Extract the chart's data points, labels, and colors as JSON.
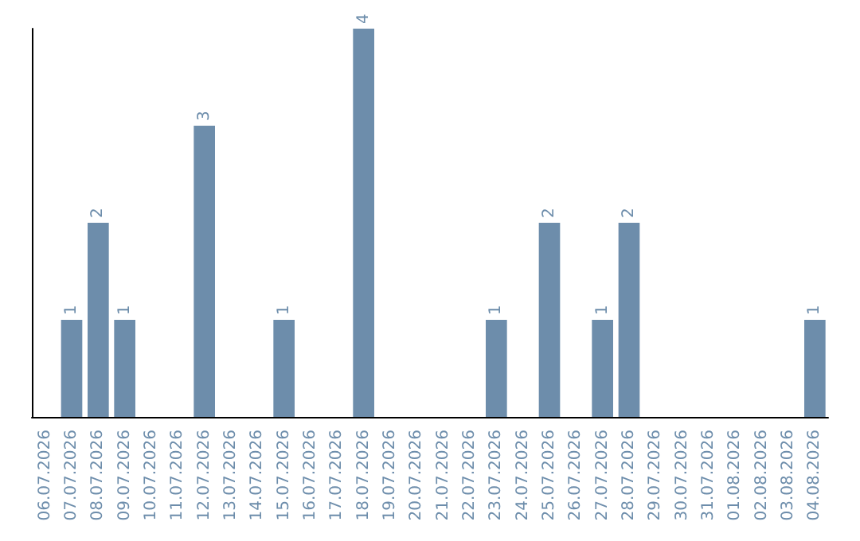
{
  "chart_data": {
    "type": "bar",
    "relative": false,
    "categories": [
      "06.07.2026",
      "07.07.2026",
      "08.07.2026",
      "09.07.2026",
      "10.07.2026",
      "11.07.2026",
      "12.07.2026",
      "13.07.2026",
      "14.07.2026",
      "15.07.2026",
      "16.07.2026",
      "17.07.2026",
      "18.07.2026",
      "19.07.2026",
      "20.07.2026",
      "21.07.2026",
      "22.07.2026",
      "23.07.2026",
      "24.07.2026",
      "25.07.2026",
      "26.07.2026",
      "27.07.2026",
      "28.07.2026",
      "29.07.2026",
      "30.07.2026",
      "31.07.2026",
      "01.08.2026",
      "02.08.2026",
      "03.08.2026",
      "04.08.2026"
    ],
    "values": [
      0,
      1,
      2,
      1,
      0,
      0,
      3,
      0,
      0,
      1,
      0,
      0,
      4,
      0,
      0,
      0,
      0,
      1,
      0,
      2,
      0,
      1,
      2,
      0,
      0,
      0,
      0,
      0,
      0,
      1
    ],
    "value_labels": [
      null,
      "1",
      "2",
      "1",
      null,
      null,
      "3",
      null,
      null,
      "1",
      null,
      null,
      "4",
      null,
      null,
      null,
      null,
      "1",
      null,
      "2",
      null,
      "1",
      "2",
      null,
      null,
      null,
      null,
      null,
      null,
      "1"
    ],
    "color": "#6d8dab",
    "tick_labels": "x",
    "grid": false
  }
}
